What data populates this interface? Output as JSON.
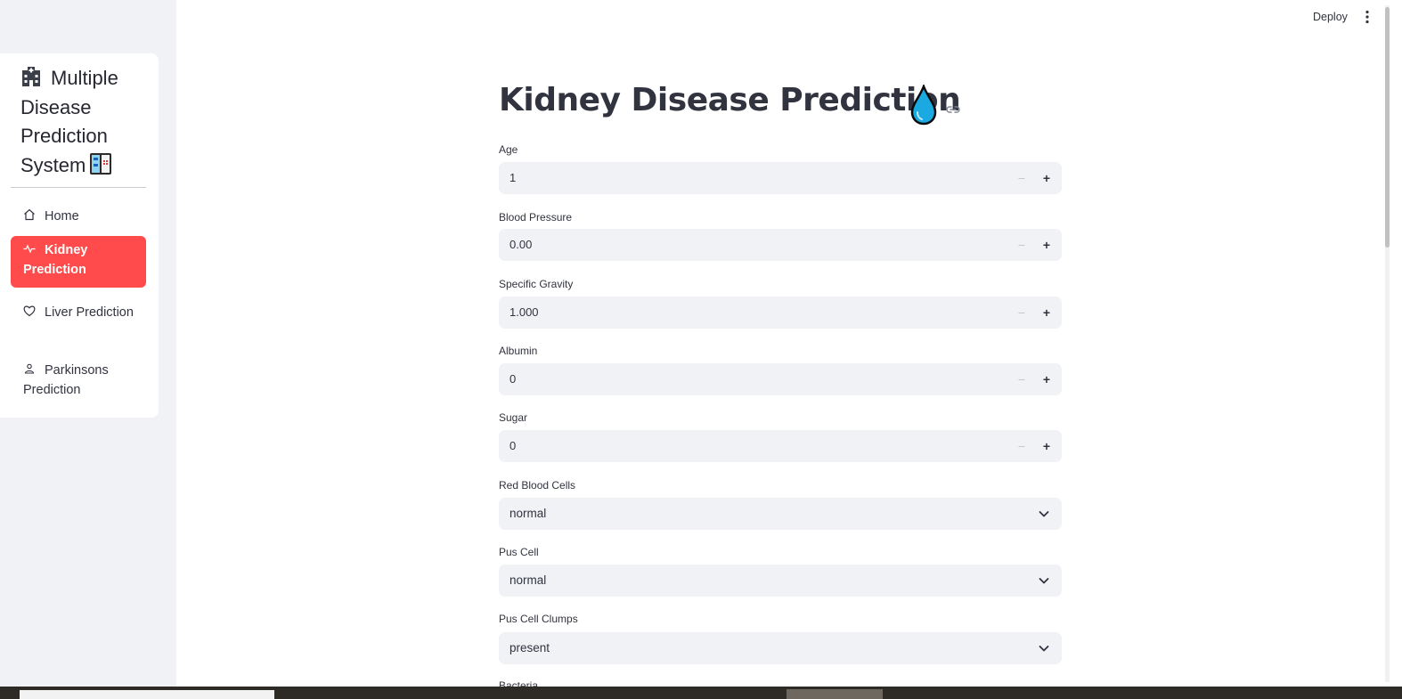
{
  "sidebar": {
    "title": "Multiple Disease Prediction System",
    "title_icon_left": "hospital-icon",
    "title_icon_right": "medical-monitor-icon",
    "items": [
      {
        "label": "Home",
        "icon": "house-icon",
        "active": false
      },
      {
        "label": "Kidney Prediction",
        "icon": "activity-icon",
        "active": true
      },
      {
        "label": "Liver Prediction",
        "icon": "heart-icon",
        "active": false
      },
      {
        "label": "Parkinsons Prediction",
        "icon": "person-icon",
        "active": false
      }
    ]
  },
  "header": {
    "deploy_label": "Deploy",
    "menu_icon": "kebab-icon"
  },
  "main": {
    "title": "Kidney Disease Prediction",
    "title_icon": "droplet-icon",
    "fields": [
      {
        "label": "Age",
        "value": "1",
        "type": "number"
      },
      {
        "label": "Blood Pressure",
        "value": "0.00",
        "type": "number"
      },
      {
        "label": "Specific Gravity",
        "value": "1.000",
        "type": "number"
      },
      {
        "label": "Albumin",
        "value": "0",
        "type": "number"
      },
      {
        "label": "Sugar",
        "value": "0",
        "type": "number"
      },
      {
        "label": "Red Blood Cells",
        "value": "normal",
        "type": "select"
      },
      {
        "label": "Pus Cell",
        "value": "normal",
        "type": "select"
      },
      {
        "label": "Pus Cell Clumps",
        "value": "present",
        "type": "select"
      },
      {
        "label": "Bacteria",
        "type": "select"
      }
    ]
  },
  "colors": {
    "accent": "#ff4b4b",
    "input_bg": "#f0f2f6",
    "text": "#31333f",
    "droplet": "#1aa9e0"
  }
}
